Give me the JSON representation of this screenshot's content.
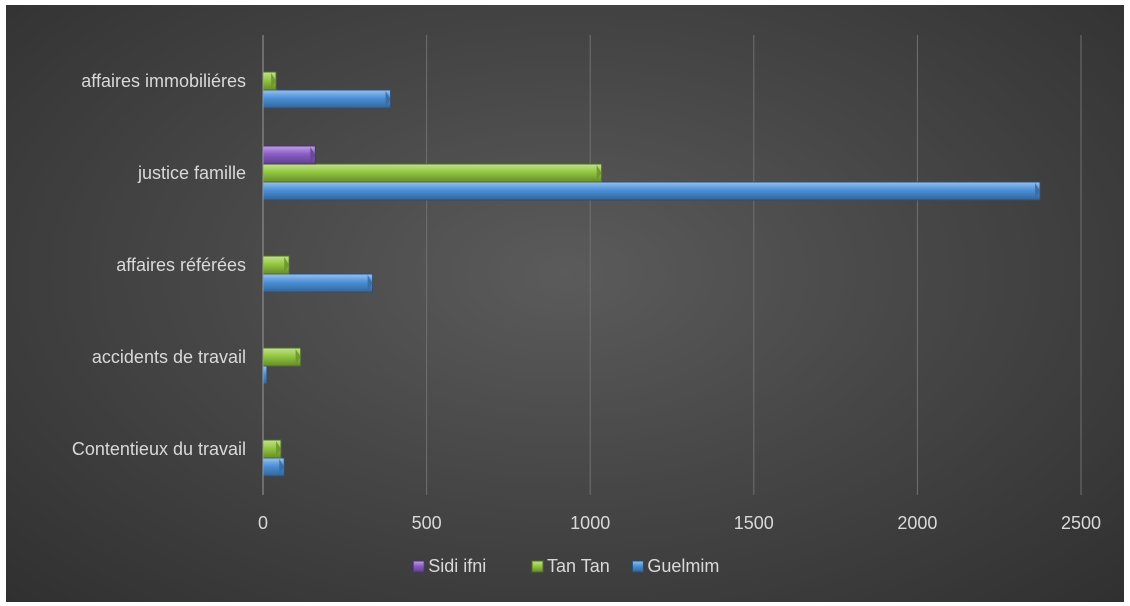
{
  "chart_data": {
    "type": "bar",
    "orientation": "horizontal",
    "categories": [
      "Contentieux du travail",
      "accidents de travail",
      "affaires référées",
      "justice famille",
      "affaires immobiliéres"
    ],
    "series": [
      {
        "name": "Guelmim",
        "color": "#4a90d9",
        "values": [
          65,
          12,
          335,
          2375,
          390
        ]
      },
      {
        "name": "Tan Tan",
        "color": "#92c83e",
        "values": [
          55,
          115,
          80,
          1035,
          40
        ]
      },
      {
        "name": "Sidi ifni",
        "color": "#8a5cc8",
        "values": [
          0,
          0,
          0,
          160,
          0
        ]
      }
    ],
    "xlim": [
      0,
      2500
    ],
    "xticks": [
      0,
      500,
      1000,
      1500,
      2000,
      2500
    ],
    "title": "",
    "xlabel": "",
    "ylabel": "",
    "grid": true,
    "legend": {
      "position": "bottom",
      "entries": [
        "Sidi ifni",
        "Tan Tan",
        "Guelmim"
      ]
    }
  }
}
